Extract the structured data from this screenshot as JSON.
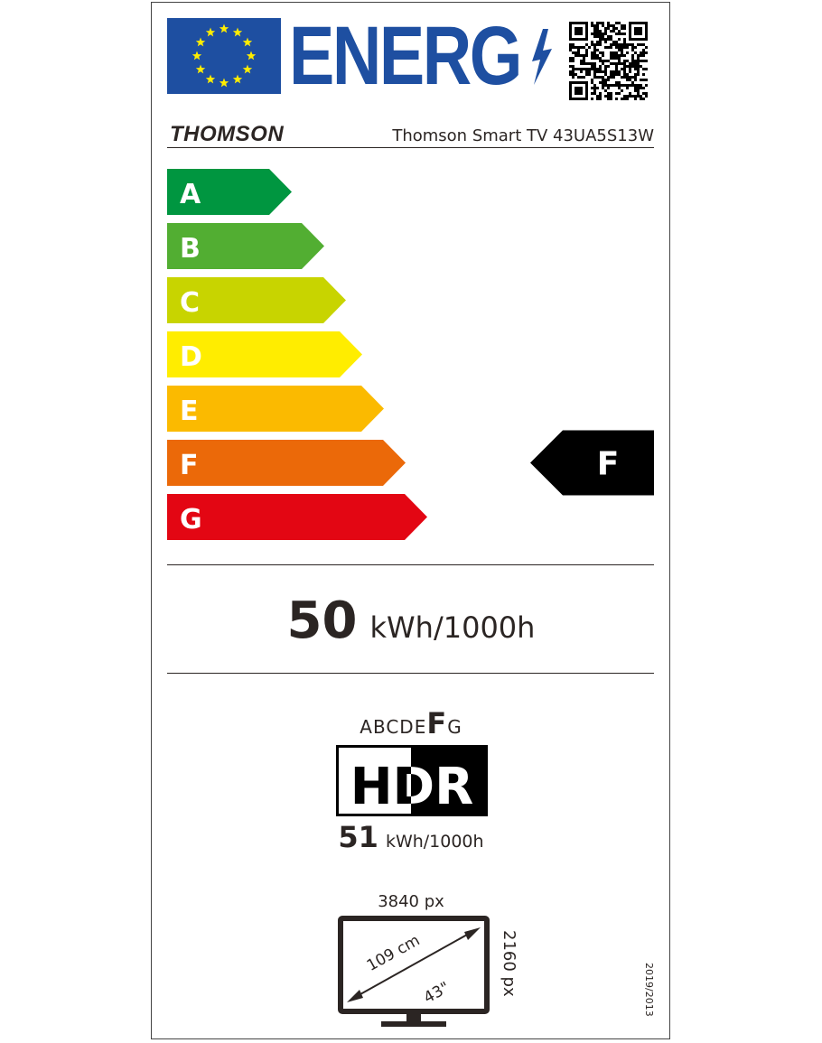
{
  "header": {
    "logo_text": "ENERG",
    "brand": "THOMSON",
    "model": "Thomson Smart TV 43UA5S13W"
  },
  "scale": {
    "classes": [
      {
        "letter": "A",
        "color": "#009640"
      },
      {
        "letter": "B",
        "color": "#52ae32"
      },
      {
        "letter": "C",
        "color": "#c8d400"
      },
      {
        "letter": "D",
        "color": "#ffed00"
      },
      {
        "letter": "E",
        "color": "#fbba00"
      },
      {
        "letter": "F",
        "color": "#eb6909"
      },
      {
        "letter": "G",
        "color": "#e30613"
      }
    ],
    "rating": "F"
  },
  "sdr": {
    "value": "50",
    "unit": "kWh/1000h"
  },
  "hdr": {
    "scale_before": "ABCDE",
    "scale_active": "F",
    "scale_after": "G",
    "logo": "HDR",
    "value": "51",
    "unit": "kWh/1000h"
  },
  "screen": {
    "width_px": "3840 px",
    "height_px": "2160 px",
    "diagonal_cm": "109 cm",
    "diagonal_in": "43\""
  },
  "regulation": "2019/2013"
}
